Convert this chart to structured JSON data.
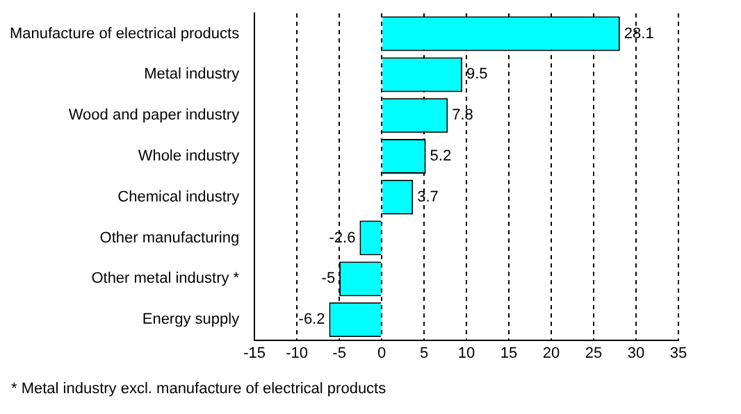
{
  "chart_data": {
    "type": "bar",
    "orientation": "horizontal",
    "categories": [
      "Manufacture of electrical products",
      "Metal industry",
      "Wood and paper industry",
      "Whole industry",
      "Chemical industry",
      "Other manufacturing",
      "Other metal industry *",
      "Energy supply"
    ],
    "values": [
      28.1,
      9.5,
      7.8,
      5.2,
      3.7,
      -2.6,
      -5,
      -6.2
    ],
    "color": "#00ffff",
    "xlim": [
      -15,
      35
    ],
    "xticks": [
      -15,
      -10,
      -5,
      0,
      5,
      10,
      15,
      20,
      25,
      30,
      35
    ],
    "grid": "x",
    "data_labels": true,
    "legend": false,
    "annotations": [
      "* Metal industry excl. manufacture of electrical products"
    ]
  }
}
